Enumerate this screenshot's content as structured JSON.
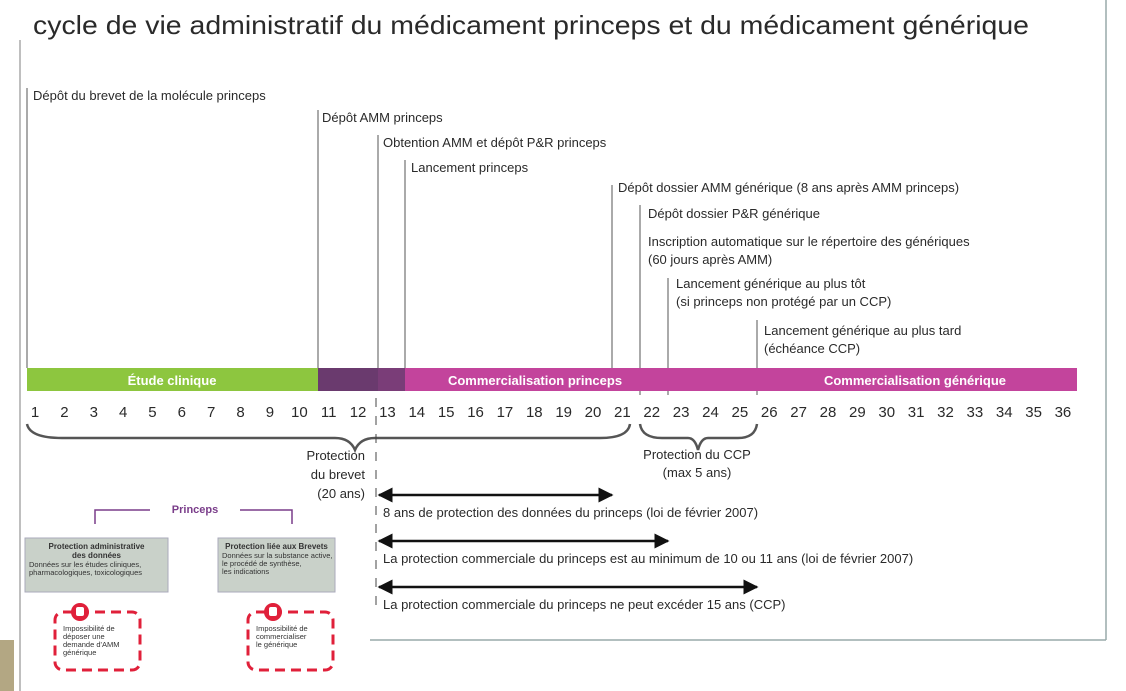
{
  "title": "cycle de vie administratif du médicament princeps et du médicament générique",
  "events": [
    {
      "lines": [
        "Dépôt du brevet de la molécule princeps"
      ]
    },
    {
      "lines": [
        "Dépôt AMM princeps"
      ]
    },
    {
      "lines": [
        "Obtention AMM et dépôt P&R princeps"
      ]
    },
    {
      "lines": [
        "Lancement princeps"
      ]
    },
    {
      "lines": [
        "Dépôt dossier AMM générique (8 ans après AMM princeps)"
      ]
    },
    {
      "lines": [
        "Dépôt dossier P&R générique"
      ]
    },
    {
      "lines": [
        "Inscription automatique sur le répertoire des génériques",
        "(60 jours après AMM)"
      ]
    },
    {
      "lines": [
        "Lancement générique au plus tôt",
        "(si princeps non protégé par un CCP)"
      ]
    },
    {
      "lines": [
        "Lancement générique au plus tard",
        "(échéance CCP)"
      ]
    }
  ],
  "phases": [
    "Étude clinique",
    "Commercialisation princeps",
    "Commercialisation générique"
  ],
  "years": [
    1,
    2,
    3,
    4,
    5,
    6,
    7,
    8,
    9,
    10,
    11,
    12,
    13,
    14,
    15,
    16,
    17,
    18,
    19,
    20,
    21,
    22,
    23,
    24,
    25,
    26,
    27,
    28,
    29,
    30,
    31,
    32,
    33,
    34,
    35,
    36
  ],
  "braces": [
    {
      "lines": [
        "Protection",
        "du brevet",
        "(20 ans)"
      ]
    },
    {
      "lines": [
        "Protection du CCP",
        "(max 5 ans)"
      ]
    }
  ],
  "arrows": [
    "8 ans de protection des données du princeps (loi de février 2007)",
    "La protection commerciale du princeps est au minimum de 10 ou 11 ans (loi de février 2007)",
    "La protection commerciale du princeps ne peut excéder 15 ans (CCP)"
  ],
  "princeps": {
    "label": "Princeps",
    "boxes": [
      {
        "title": [
          "Protection administrative",
          "des données"
        ],
        "text": [
          "Données sur les études cliniques,",
          "pharmacologiques, toxicologiques"
        ],
        "warning": [
          "Impossibilité de",
          "déposer une",
          "demande d'AMM",
          "générique"
        ]
      },
      {
        "title": [
          "Protection liée aux Brevets"
        ],
        "text": [
          "Données sur la substance active,",
          "le procédé de synthèse,",
          "les indications"
        ],
        "warning": [
          "Impossibilité de",
          "commercialiser",
          "le générique"
        ]
      }
    ]
  }
}
